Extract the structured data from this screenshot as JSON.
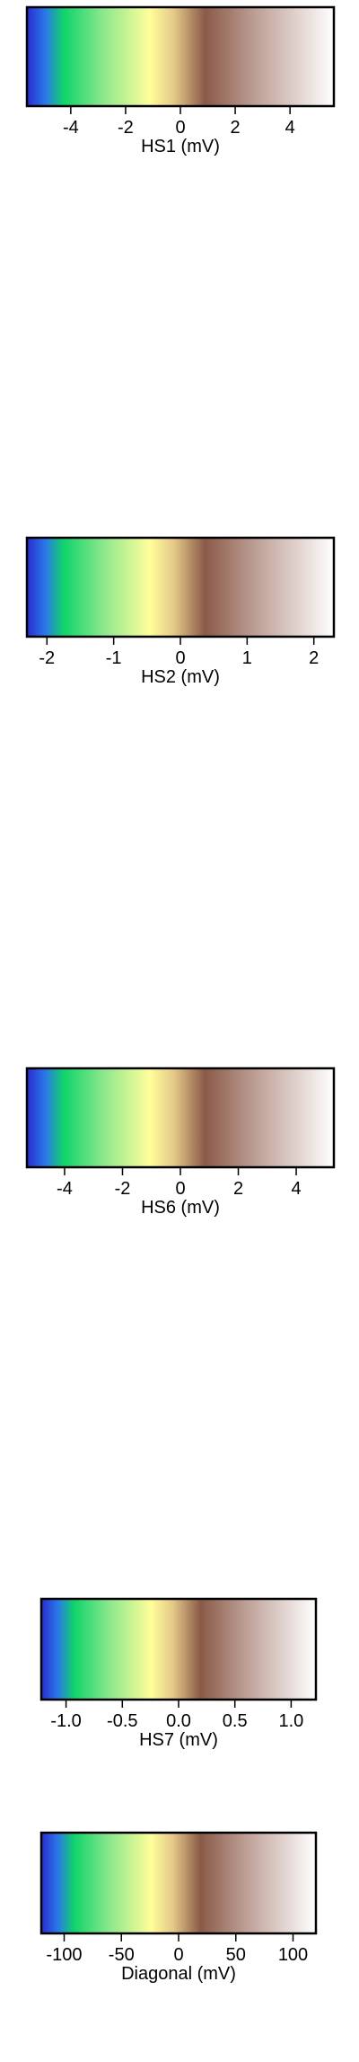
{
  "colormap": {
    "name": "blue-green-yellow-brown-white",
    "stops": [
      {
        "offset": 0.0,
        "color": "#2a2bd0"
      },
      {
        "offset": 0.06,
        "color": "#2a78e8"
      },
      {
        "offset": 0.12,
        "color": "#10d46a"
      },
      {
        "offset": 0.25,
        "color": "#8de88d"
      },
      {
        "offset": 0.4,
        "color": "#fffe9a"
      },
      {
        "offset": 0.48,
        "color": "#e4c888"
      },
      {
        "offset": 0.58,
        "color": "#8a5a48"
      },
      {
        "offset": 0.75,
        "color": "#bfa198"
      },
      {
        "offset": 1.0,
        "color": "#ffffff"
      }
    ]
  },
  "chart_data": [
    {
      "type": "colorbar",
      "xlabel": "HS1 (mV)",
      "xlim": [
        -5.6,
        5.6
      ],
      "ticks": [
        -4,
        -2,
        0,
        2,
        4
      ],
      "tick_labels": [
        "-4",
        "-2",
        "0",
        "2",
        "4"
      ]
    },
    {
      "type": "colorbar",
      "xlabel": "HS2 (mV)",
      "xlim": [
        -2.3,
        2.3
      ],
      "ticks": [
        -2,
        -1,
        0,
        1,
        2
      ],
      "tick_labels": [
        "-2",
        "-1",
        "0",
        "1",
        "2"
      ]
    },
    {
      "type": "colorbar",
      "xlabel": "HS6 (mV)",
      "xlim": [
        -5.3,
        5.3
      ],
      "ticks": [
        -4,
        -2,
        0,
        2,
        4
      ],
      "tick_labels": [
        "-4",
        "-2",
        "0",
        "2",
        "4"
      ]
    },
    {
      "type": "colorbar",
      "xlabel": "HS7 (mV)",
      "xlim": [
        -1.22,
        1.22
      ],
      "ticks": [
        -1.0,
        -0.5,
        0.0,
        0.5,
        1.0
      ],
      "tick_labels": [
        "-1.0",
        "-0.5",
        "0.0",
        "0.5",
        "1.0"
      ]
    },
    {
      "type": "colorbar",
      "xlabel": "Diagonal (mV)",
      "xlim": [
        -120,
        120
      ],
      "ticks": [
        -100,
        -50,
        0,
        50,
        100
      ],
      "tick_labels": [
        "-100",
        "-50",
        "0",
        "50",
        "100"
      ]
    }
  ]
}
